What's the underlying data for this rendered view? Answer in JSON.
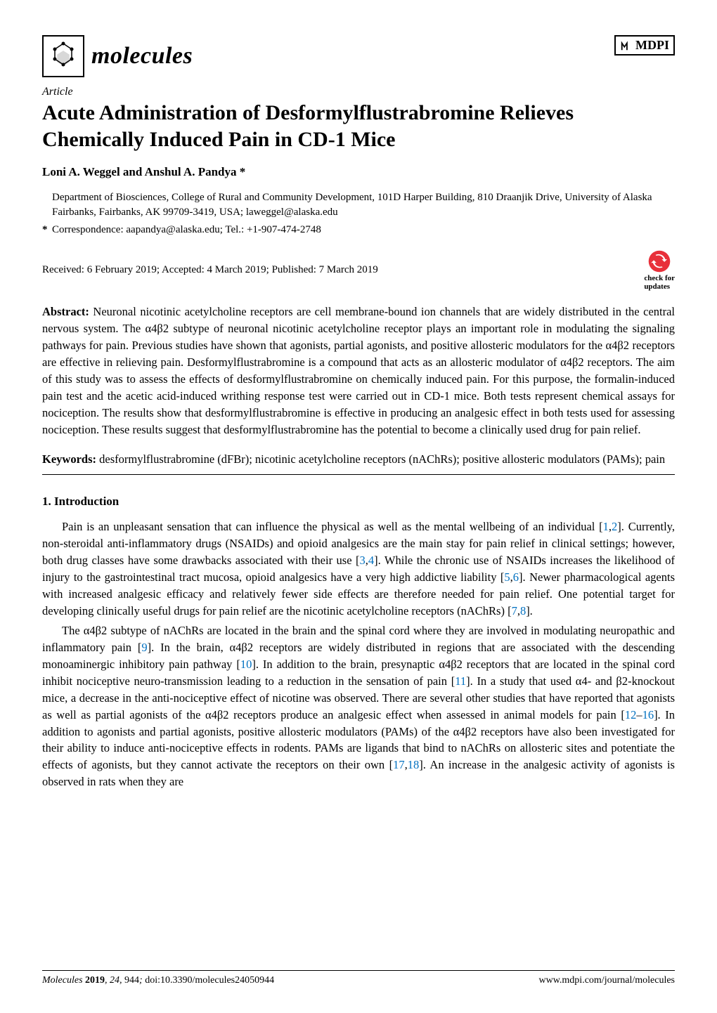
{
  "header": {
    "journal_name": "molecules",
    "publisher_label": "MDPI"
  },
  "article": {
    "type": "Article",
    "title": "Acute Administration of Desformylflustrabromine Relieves Chemically Induced Pain in CD-1 Mice",
    "authors": "Loni A. Weggel and Anshul A. Pandya *",
    "affiliation": "Department of Biosciences, College of Rural and Community Development, 101D Harper Building, 810 Draanjik Drive, University of Alaska Fairbanks, Fairbanks, AK 99709-3419, USA; laweggel@alaska.edu",
    "correspondence": "Correspondence: aapandya@alaska.edu; Tel.: +1-907-474-2748",
    "dates": "Received: 6 February 2019; Accepted: 4 March 2019; Published: 7 March 2019",
    "check_updates_label": "check for",
    "check_updates_label2": "updates"
  },
  "abstract": {
    "label": "Abstract:",
    "text": "Neuronal nicotinic acetylcholine receptors are cell membrane-bound ion channels that are widely distributed in the central nervous system. The α4β2 subtype of neuronal nicotinic acetylcholine receptor plays an important role in modulating the signaling pathways for pain. Previous studies have shown that agonists, partial agonists, and positive allosteric modulators for the α4β2 receptors are effective in relieving pain. Desformylflustrabromine is a compound that acts as an allosteric modulator of α4β2 receptors. The aim of this study was to assess the effects of desformylflustrabromine on chemically induced pain. For this purpose, the formalin-induced pain test and the acetic acid-induced writhing response test were carried out in CD-1 mice. Both tests represent chemical assays for nociception. The results show that desformylflustrabromine is effective in producing an analgesic effect in both tests used for assessing nociception. These results suggest that desformylflustrabromine has the potential to become a clinically used drug for pain relief."
  },
  "keywords": {
    "label": "Keywords:",
    "text": "desformylflustrabromine (dFBr); nicotinic acetylcholine receptors (nAChRs); positive allosteric modulators (PAMs); pain"
  },
  "section": {
    "heading": "1. Introduction"
  },
  "paragraphs": {
    "p1_parts": [
      "Pain is an unpleasant sensation that can influence the physical as well as the mental wellbeing of an individual [",
      "1",
      ",",
      "2",
      "]. Currently, non-steroidal anti-inflammatory drugs (NSAIDs) and opioid analgesics are the main stay for pain relief in clinical settings; however, both drug classes have some drawbacks associated with their use [",
      "3",
      ",",
      "4",
      "]. While the chronic use of NSAIDs increases the likelihood of injury to the gastrointestinal tract mucosa, opioid analgesics have a very high addictive liability [",
      "5",
      ",",
      "6",
      "]. Newer pharmacological agents with increased analgesic efficacy and relatively fewer side effects are therefore needed for pain relief. One potential target for developing clinically useful drugs for pain relief are the nicotinic acetylcholine receptors (nAChRs) [",
      "7",
      ",",
      "8",
      "]."
    ],
    "p2_parts": [
      "The α4β2 subtype of nAChRs are located in the brain and the spinal cord where they are involved in modulating neuropathic and inflammatory pain [",
      "9",
      "]. In the brain, α4β2 receptors are widely distributed in regions that are associated with the descending monoaminergic inhibitory pain pathway [",
      "10",
      "]. In addition to the brain, presynaptic α4β2 receptors that are located in the spinal cord inhibit nociceptive neuro-transmission leading to a reduction in the sensation of pain [",
      "11",
      "]. In a study that used α4- and β2-knockout mice, a decrease in the anti-nociceptive effect of nicotine was observed. There are several other studies that have reported that agonists as well as partial agonists of the α4β2 receptors produce an analgesic effect when assessed in animal models for pain [",
      "12",
      "–",
      "16",
      "]. In addition to agonists and partial agonists, positive allosteric modulators (PAMs) of the α4β2 receptors have also been investigated for their ability to induce anti-nociceptive effects in rodents. PAMs are ligands that bind to nAChRs on allosteric sites and potentiate the effects of agonists, but they cannot activate the receptors on their own [",
      "17",
      ",",
      "18",
      "]. An increase in the analgesic activity of agonists is observed in rats when they are"
    ]
  },
  "footer": {
    "left_journal": "Molecules",
    "left_year": "2019",
    "left_vol": "24",
    "left_page": "944",
    "left_doi": "doi:10.3390/molecules24050944",
    "right": "www.mdpi.com/journal/molecules"
  },
  "colors": {
    "link": "#0070c0",
    "text": "#000000",
    "background": "#ffffff",
    "check_updates": "#e8303a"
  },
  "typography": {
    "title_fontsize": 30,
    "body_fontsize": 16.5,
    "authors_fontsize": 17,
    "footer_fontsize": 14,
    "journal_name_fontsize": 34
  }
}
